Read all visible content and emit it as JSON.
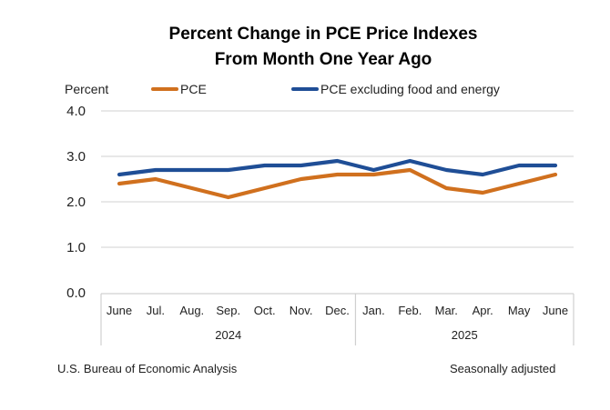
{
  "chart_data": {
    "type": "line",
    "title": "Percent Change in PCE Price Indexes",
    "subtitle": "From Month One Year Ago",
    "ylabel": "Percent",
    "xlabel": "",
    "ylim": [
      0.0,
      4.0
    ],
    "yticks": [
      "0.0",
      "1.0",
      "2.0",
      "3.0",
      "4.0"
    ],
    "grid": true,
    "legend_position": "top",
    "categories": [
      "June",
      "Jul.",
      "Aug.",
      "Sep.",
      "Oct.",
      "Nov.",
      "Dec.",
      "Jan.",
      "Feb.",
      "Mar.",
      "Apr.",
      "May",
      "June"
    ],
    "category_groups": [
      {
        "label": "2024",
        "count": 7
      },
      {
        "label": "2025",
        "count": 6
      }
    ],
    "series": [
      {
        "name": "PCE",
        "color": "#D0701E",
        "values": [
          2.4,
          2.5,
          2.3,
          2.1,
          2.3,
          2.5,
          2.6,
          2.6,
          2.7,
          2.3,
          2.2,
          2.4,
          2.6
        ]
      },
      {
        "name": "PCE excluding food and energy",
        "color": "#1F4E96",
        "values": [
          2.6,
          2.7,
          2.7,
          2.7,
          2.8,
          2.8,
          2.9,
          2.7,
          2.9,
          2.7,
          2.6,
          2.8,
          2.8
        ]
      }
    ]
  },
  "footer": {
    "source": "U.S. Bureau of Economic Analysis",
    "note": "Seasonally adjusted"
  }
}
